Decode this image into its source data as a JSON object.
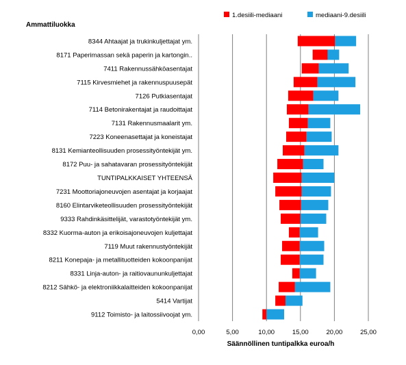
{
  "chart_data": {
    "type": "bar",
    "orientation": "horizontal",
    "stacked": "floating-range",
    "title": "Ammattiluokka",
    "xlabel": "Säännöllinen tuntipalkka euroa/h",
    "ylabel": "",
    "xlim": [
      0,
      25
    ],
    "x_ticks": [
      "0,00",
      "5,00",
      "10,00",
      "15,00",
      "20,00",
      "25,00"
    ],
    "grid": "vertical",
    "legend_position": "top-right",
    "series": [
      {
        "name": "1.desiili-mediaani",
        "color": "#ff0000",
        "from": "low",
        "to": "median"
      },
      {
        "name": "mediaani-9.desiili",
        "color": "#1e9fe0",
        "from": "median",
        "to": "high"
      }
    ],
    "categories": [
      "8344  Ahtaajat ja trukinkuljettajat ym.",
      "8171  Paperimassan sekä paperin ja kartongin..",
      "7411  Rakennussähköasentajat",
      "7115  Kirvesmiehet ja rakennuspuusepät",
      "7126  Putkiasentajat",
      "7114  Betonirakentajat ja raudoittajat",
      "7131  Rakennusmaalarit ym.",
      "7223  Koneenasettajat ja koneistajat",
      "8131  Kemianteollisuuden prosessityöntekijät ym.",
      "8172  Puu- ja sahatavaran prosessityöntekijät",
      "TUNTIPALKKAISET YHTEENSÄ",
      "7231  Moottoriajoneuvojen asentajat ja korjaajat",
      "8160  Elintarviketeollisuuden prosessityöntekijät",
      "9333  Rahdinkäsittelijät, varastotyöntekijät ym.",
      "8332  Kuorma-auton ja erikoisajoneuvojen kuljettajat",
      "7119  Muut rakennustyöntekijät",
      "8211  Konepaja- ja metallituotteiden kokoonpanijat",
      "8331  Linja-auton- ja raitiovaununkuljettajat",
      "8212  Sähkö- ja elektroniikkalaitteiden kokoonpanijat",
      "5414  Vartijat",
      "9112  Toimisto- ja laitossiivoojat ym."
    ],
    "low": [
      14.6,
      16.8,
      15.2,
      14.0,
      13.2,
      13.0,
      13.3,
      12.9,
      12.4,
      11.6,
      11.0,
      11.3,
      11.9,
      12.1,
      13.3,
      12.3,
      12.1,
      13.8,
      11.8,
      11.3,
      9.4
    ],
    "median": [
      20.1,
      19.0,
      17.7,
      17.5,
      16.9,
      16.2,
      16.1,
      15.9,
      15.6,
      15.4,
      15.2,
      15.2,
      15.1,
      15.0,
      14.9,
      14.9,
      14.9,
      14.9,
      14.2,
      12.8,
      10.0
    ],
    "high": [
      23.2,
      20.7,
      22.1,
      23.1,
      20.6,
      23.8,
      19.4,
      19.6,
      20.6,
      18.4,
      20.0,
      19.5,
      19.1,
      18.8,
      17.6,
      18.5,
      18.4,
      17.3,
      19.4,
      15.3,
      12.6
    ]
  }
}
